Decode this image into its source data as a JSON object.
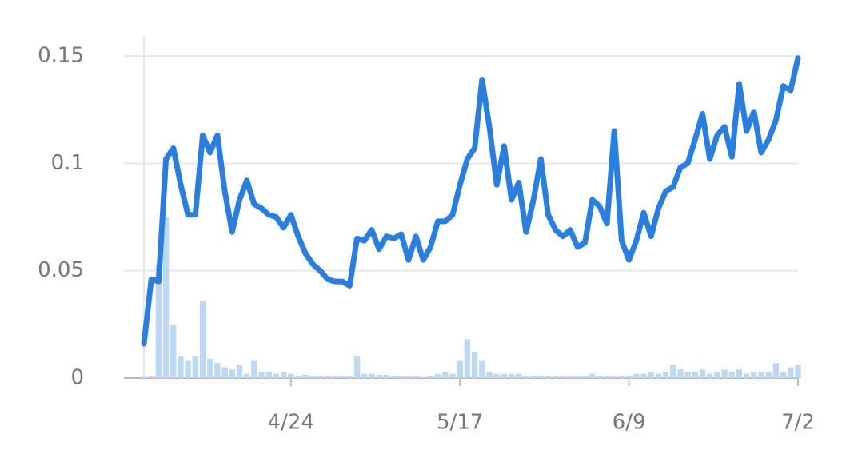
{
  "chart_data": {
    "type": "bar-line",
    "categories": [
      null,
      null,
      null,
      null,
      null,
      null,
      null,
      null,
      null,
      null,
      null,
      null,
      null,
      null,
      null,
      null,
      null,
      null,
      null,
      null,
      "4/24",
      null,
      null,
      null,
      null,
      null,
      null,
      null,
      null,
      null,
      null,
      null,
      null,
      null,
      null,
      null,
      null,
      null,
      null,
      null,
      null,
      null,
      null,
      "5/17",
      null,
      null,
      null,
      null,
      null,
      null,
      null,
      null,
      null,
      null,
      null,
      null,
      null,
      null,
      null,
      null,
      null,
      null,
      null,
      null,
      null,
      null,
      "6/9",
      null,
      null,
      null,
      null,
      null,
      null,
      null,
      null,
      null,
      null,
      null,
      null,
      null,
      null,
      null,
      null,
      null,
      null,
      null,
      null,
      null,
      null,
      "7/2"
    ],
    "series": [
      {
        "type": "bar",
        "color": "#bcd8f3",
        "values": [
          0.0005,
          0.001,
          0.053,
          0.075,
          0.025,
          0.01,
          0.008,
          0.01,
          0.036,
          0.009,
          0.007,
          0.005,
          0.004,
          0.006,
          0.002,
          0.008,
          0.003,
          0.003,
          0.002,
          0.003,
          0.002,
          0.001,
          0.0015,
          0.001,
          0.001,
          0.001,
          0.001,
          0.001,
          0.001,
          0.01,
          0.002,
          0.002,
          0.0015,
          0.0015,
          0.001,
          0.001,
          0.001,
          0.001,
          0.0005,
          0.001,
          0.002,
          0.003,
          0.002,
          0.008,
          0.018,
          0.012,
          0.008,
          0.003,
          0.002,
          0.002,
          0.002,
          0.002,
          0.001,
          0.001,
          0.001,
          0.001,
          0.001,
          0.001,
          0.001,
          0.001,
          0.001,
          0.002,
          0.001,
          0.001,
          0.001,
          0.001,
          0.001,
          0.002,
          0.002,
          0.003,
          0.002,
          0.003,
          0.006,
          0.004,
          0.003,
          0.003,
          0.004,
          0.002,
          0.003,
          0.004,
          0.003,
          0.004,
          0.002,
          0.003,
          0.003,
          0.003,
          0.007,
          0.003,
          0.005,
          0.006
        ]
      },
      {
        "type": "line",
        "color": "#2a7fde",
        "values": [
          0.016,
          0.046,
          0.045,
          0.102,
          0.107,
          0.09,
          0.076,
          0.076,
          0.113,
          0.105,
          0.113,
          0.087,
          0.068,
          0.083,
          0.092,
          0.081,
          0.079,
          0.076,
          0.075,
          0.07,
          0.076,
          0.066,
          0.058,
          0.053,
          0.05,
          0.046,
          0.045,
          0.045,
          0.043,
          0.065,
          0.064,
          0.069,
          0.06,
          0.066,
          0.065,
          0.067,
          0.055,
          0.066,
          0.055,
          0.061,
          0.073,
          0.073,
          0.076,
          0.09,
          0.102,
          0.107,
          0.139,
          0.117,
          0.09,
          0.108,
          0.083,
          0.091,
          0.068,
          0.083,
          0.102,
          0.076,
          0.069,
          0.066,
          0.069,
          0.061,
          0.063,
          0.083,
          0.08,
          0.072,
          0.115,
          0.064,
          0.055,
          0.064,
          0.077,
          0.066,
          0.079,
          0.087,
          0.089,
          0.098,
          0.1,
          0.111,
          0.123,
          0.102,
          0.113,
          0.117,
          0.103,
          0.137,
          0.115,
          0.124,
          0.105,
          0.111,
          0.12,
          0.136,
          0.134,
          0.149
        ]
      }
    ],
    "ylim": [
      0,
      0.15
    ],
    "yticks": [
      0,
      0.05,
      0.1,
      0.15
    ],
    "grid": true
  }
}
